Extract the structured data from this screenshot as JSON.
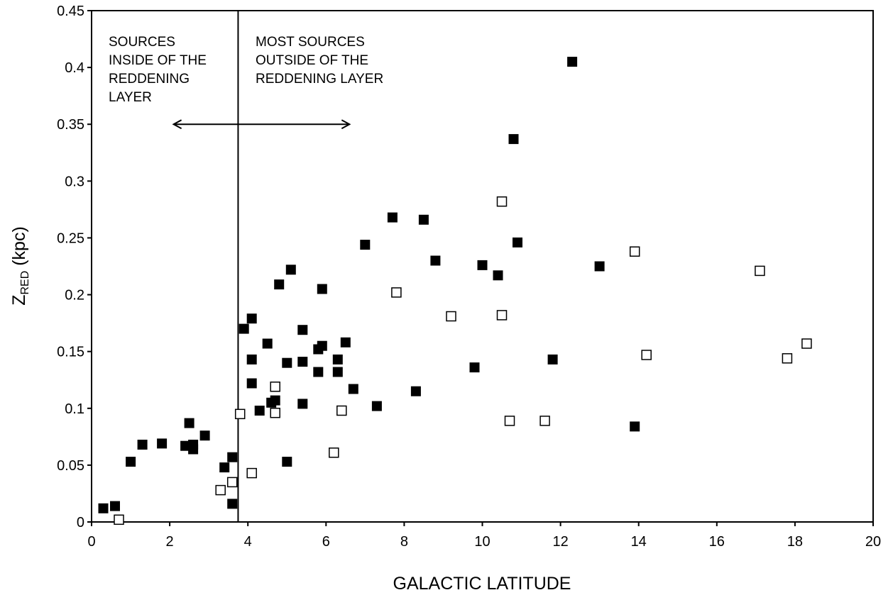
{
  "chart_data": {
    "type": "scatter",
    "title": "",
    "xlabel": "GALACTIC LATITUDE",
    "ylabel_main": "Z",
    "ylabel_sub": "RED",
    "ylabel_unit": " (kpc)",
    "xlim": [
      0,
      20
    ],
    "ylim": [
      0,
      0.45
    ],
    "x_ticks": [
      0,
      2,
      4,
      6,
      8,
      10,
      12,
      14,
      16,
      18,
      20
    ],
    "y_ticks": [
      "0",
      "0.05",
      "0.1",
      "0.15",
      "0.2",
      "0.25",
      "0.3",
      "0.35",
      "0.4",
      "0.45"
    ],
    "grid": false,
    "divider_x": 3.75,
    "annotations": {
      "inside": [
        "SOURCES",
        "INSIDE OF THE",
        "REDDENING",
        "LAYER"
      ],
      "outside": [
        "MOST SOURCES",
        "OUTSIDE OF THE",
        "REDDENING LAYER"
      ]
    },
    "arrow": {
      "x_from": 2.1,
      "x_to": 6.6,
      "y": 0.35
    },
    "series": [
      {
        "marker": "filled-square",
        "color": "#000000",
        "points": [
          [
            0.3,
            0.012
          ],
          [
            0.6,
            0.014
          ],
          [
            1.0,
            0.053
          ],
          [
            1.3,
            0.068
          ],
          [
            1.8,
            0.069
          ],
          [
            2.4,
            0.067
          ],
          [
            2.5,
            0.087
          ],
          [
            2.6,
            0.068
          ],
          [
            2.6,
            0.064
          ],
          [
            2.9,
            0.076
          ],
          [
            3.4,
            0.048
          ],
          [
            3.6,
            0.057
          ],
          [
            3.6,
            0.016
          ],
          [
            3.9,
            0.17
          ],
          [
            4.1,
            0.179
          ],
          [
            4.1,
            0.143
          ],
          [
            4.1,
            0.122
          ],
          [
            4.3,
            0.098
          ],
          [
            4.5,
            0.157
          ],
          [
            4.6,
            0.105
          ],
          [
            4.7,
            0.107
          ],
          [
            4.8,
            0.209
          ],
          [
            5.0,
            0.053
          ],
          [
            5.0,
            0.14
          ],
          [
            5.1,
            0.222
          ],
          [
            5.4,
            0.169
          ],
          [
            5.4,
            0.141
          ],
          [
            5.4,
            0.104
          ],
          [
            5.8,
            0.152
          ],
          [
            5.8,
            0.132
          ],
          [
            5.9,
            0.155
          ],
          [
            5.9,
            0.205
          ],
          [
            6.3,
            0.143
          ],
          [
            6.3,
            0.132
          ],
          [
            6.5,
            0.158
          ],
          [
            6.7,
            0.117
          ],
          [
            7.0,
            0.244
          ],
          [
            7.3,
            0.102
          ],
          [
            7.7,
            0.268
          ],
          [
            8.3,
            0.115
          ],
          [
            8.5,
            0.266
          ],
          [
            8.8,
            0.23
          ],
          [
            9.8,
            0.136
          ],
          [
            10.0,
            0.226
          ],
          [
            10.4,
            0.217
          ],
          [
            10.8,
            0.337
          ],
          [
            10.9,
            0.246
          ],
          [
            11.8,
            0.143
          ],
          [
            12.3,
            0.405
          ],
          [
            13.0,
            0.225
          ],
          [
            13.9,
            0.084
          ]
        ]
      },
      {
        "marker": "open-square",
        "color": "#000000",
        "points": [
          [
            0.7,
            0.002
          ],
          [
            3.3,
            0.028
          ],
          [
            3.6,
            0.035
          ],
          [
            3.8,
            0.095
          ],
          [
            4.1,
            0.043
          ],
          [
            4.7,
            0.119
          ],
          [
            4.7,
            0.096
          ],
          [
            6.2,
            0.061
          ],
          [
            6.4,
            0.098
          ],
          [
            7.8,
            0.202
          ],
          [
            9.2,
            0.181
          ],
          [
            10.5,
            0.282
          ],
          [
            10.5,
            0.182
          ],
          [
            10.7,
            0.089
          ],
          [
            11.6,
            0.089
          ],
          [
            13.9,
            0.238
          ],
          [
            14.2,
            0.147
          ],
          [
            17.1,
            0.221
          ],
          [
            17.8,
            0.144
          ],
          [
            18.3,
            0.157
          ]
        ]
      }
    ]
  }
}
